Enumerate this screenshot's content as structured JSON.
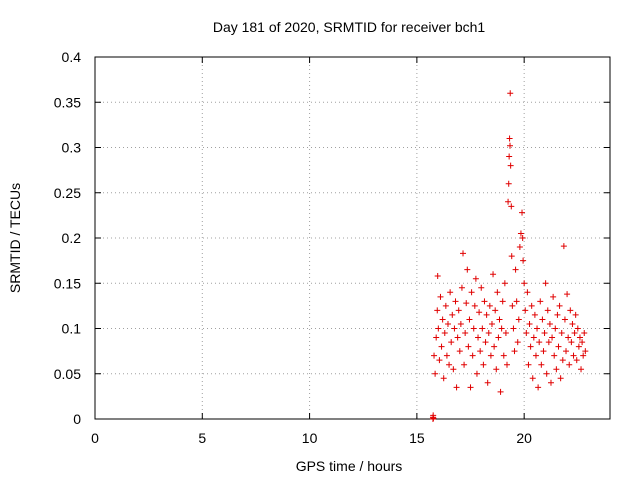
{
  "chart_data": {
    "type": "scatter",
    "title": "Day 181 of 2020, SRMTID for receiver bch1",
    "xlabel": "GPS time / hours",
    "ylabel": "SRMTID / TECUs",
    "xlim": [
      0,
      24
    ],
    "ylim": [
      0,
      0.4
    ],
    "xticks": [
      0,
      5,
      10,
      15,
      20
    ],
    "xtick_labels": [
      "0",
      "5",
      "10",
      "15",
      "20"
    ],
    "yticks": [
      0,
      0.05,
      0.1,
      0.15,
      0.2,
      0.25,
      0.3,
      0.35,
      0.4
    ],
    "ytick_labels": [
      "0",
      "0.05",
      "0.1",
      "0.15",
      "0.2",
      "0.25",
      "0.3",
      "0.35",
      "0.4"
    ],
    "grid": true,
    "marker": "+",
    "marker_color": "#e00000",
    "series": [
      {
        "name": "bch1",
        "points": [
          [
            15.75,
            0.0
          ],
          [
            15.75,
            0.002
          ],
          [
            15.76,
            0.004
          ],
          [
            15.77,
            0.001
          ],
          [
            15.8,
            0.07
          ],
          [
            15.85,
            0.05
          ],
          [
            15.9,
            0.09
          ],
          [
            15.95,
            0.12
          ],
          [
            15.97,
            0.158
          ],
          [
            16.0,
            0.1
          ],
          [
            16.05,
            0.065
          ],
          [
            16.1,
            0.135
          ],
          [
            16.15,
            0.08
          ],
          [
            16.2,
            0.11
          ],
          [
            16.25,
            0.045
          ],
          [
            16.3,
            0.095
          ],
          [
            16.35,
            0.125
          ],
          [
            16.4,
            0.07
          ],
          [
            16.45,
            0.105
          ],
          [
            16.5,
            0.06
          ],
          [
            16.55,
            0.14
          ],
          [
            16.6,
            0.085
          ],
          [
            16.65,
            0.115
          ],
          [
            16.7,
            0.055
          ],
          [
            16.75,
            0.1
          ],
          [
            16.8,
            0.13
          ],
          [
            16.85,
            0.035
          ],
          [
            16.9,
            0.09
          ],
          [
            16.95,
            0.12
          ],
          [
            17.0,
            0.075
          ],
          [
            17.05,
            0.105
          ],
          [
            17.1,
            0.145
          ],
          [
            17.15,
            0.183
          ],
          [
            17.2,
            0.06
          ],
          [
            17.25,
            0.095
          ],
          [
            17.3,
            0.128
          ],
          [
            17.35,
            0.165
          ],
          [
            17.4,
            0.08
          ],
          [
            17.45,
            0.11
          ],
          [
            17.5,
            0.035
          ],
          [
            17.55,
            0.14
          ],
          [
            17.6,
            0.07
          ],
          [
            17.65,
            0.1
          ],
          [
            17.7,
            0.125
          ],
          [
            17.75,
            0.155
          ],
          [
            17.8,
            0.05
          ],
          [
            17.85,
            0.09
          ],
          [
            17.9,
            0.118
          ],
          [
            17.95,
            0.075
          ],
          [
            18.0,
            0.145
          ],
          [
            18.05,
            0.1
          ],
          [
            18.1,
            0.06
          ],
          [
            18.15,
            0.13
          ],
          [
            18.2,
            0.085
          ],
          [
            18.25,
            0.115
          ],
          [
            18.3,
            0.04
          ],
          [
            18.35,
            0.095
          ],
          [
            18.4,
            0.125
          ],
          [
            18.45,
            0.07
          ],
          [
            18.5,
            0.105
          ],
          [
            18.55,
            0.16
          ],
          [
            18.6,
            0.08
          ],
          [
            18.65,
            0.12
          ],
          [
            18.7,
            0.055
          ],
          [
            18.75,
            0.14
          ],
          [
            18.8,
            0.09
          ],
          [
            18.85,
            0.11
          ],
          [
            18.9,
            0.03
          ],
          [
            18.95,
            0.1
          ],
          [
            19.0,
            0.13
          ],
          [
            19.05,
            0.07
          ],
          [
            19.1,
            0.15
          ],
          [
            19.15,
            0.095
          ],
          [
            19.2,
            0.06
          ],
          [
            19.25,
            0.24
          ],
          [
            19.28,
            0.26
          ],
          [
            19.3,
            0.29
          ],
          [
            19.32,
            0.31
          ],
          [
            19.34,
            0.302
          ],
          [
            19.35,
            0.36
          ],
          [
            19.37,
            0.28
          ],
          [
            19.4,
            0.235
          ],
          [
            19.42,
            0.18
          ],
          [
            19.45,
            0.125
          ],
          [
            19.5,
            0.1
          ],
          [
            19.55,
            0.075
          ],
          [
            19.6,
            0.165
          ],
          [
            19.65,
            0.13
          ],
          [
            19.7,
            0.085
          ],
          [
            19.75,
            0.11
          ],
          [
            19.8,
            0.19
          ],
          [
            19.85,
            0.205
          ],
          [
            19.9,
            0.228
          ],
          [
            19.93,
            0.2
          ],
          [
            19.95,
            0.175
          ],
          [
            20.0,
            0.15
          ],
          [
            20.05,
            0.12
          ],
          [
            20.1,
            0.095
          ],
          [
            20.15,
            0.14
          ],
          [
            20.2,
            0.06
          ],
          [
            20.25,
            0.105
          ],
          [
            20.3,
            0.08
          ],
          [
            20.35,
            0.125
          ],
          [
            20.4,
            0.045
          ],
          [
            20.45,
            0.09
          ],
          [
            20.5,
            0.115
          ],
          [
            20.55,
            0.07
          ],
          [
            20.6,
            0.1
          ],
          [
            20.65,
            0.035
          ],
          [
            20.7,
            0.085
          ],
          [
            20.75,
            0.13
          ],
          [
            20.8,
            0.06
          ],
          [
            20.85,
            0.11
          ],
          [
            20.9,
            0.075
          ],
          [
            20.95,
            0.095
          ],
          [
            21.0,
            0.15
          ],
          [
            21.05,
            0.05
          ],
          [
            21.1,
            0.12
          ],
          [
            21.15,
            0.085
          ],
          [
            21.2,
            0.105
          ],
          [
            21.25,
            0.04
          ],
          [
            21.3,
            0.09
          ],
          [
            21.35,
            0.135
          ],
          [
            21.4,
            0.07
          ],
          [
            21.45,
            0.1
          ],
          [
            21.5,
            0.055
          ],
          [
            21.55,
            0.115
          ],
          [
            21.6,
            0.08
          ],
          [
            21.65,
            0.125
          ],
          [
            21.7,
            0.045
          ],
          [
            21.75,
            0.095
          ],
          [
            21.8,
            0.065
          ],
          [
            21.85,
            0.191
          ],
          [
            21.9,
            0.11
          ],
          [
            21.95,
            0.075
          ],
          [
            22.0,
            0.138
          ],
          [
            22.05,
            0.09
          ],
          [
            22.1,
            0.06
          ],
          [
            22.15,
            0.12
          ],
          [
            22.2,
            0.085
          ],
          [
            22.25,
            0.105
          ],
          [
            22.3,
            0.07
          ],
          [
            22.35,
            0.095
          ],
          [
            22.4,
            0.115
          ],
          [
            22.45,
            0.065
          ],
          [
            22.5,
            0.1
          ],
          [
            22.55,
            0.08
          ],
          [
            22.6,
            0.09
          ],
          [
            22.65,
            0.055
          ],
          [
            22.7,
            0.085
          ],
          [
            22.75,
            0.07
          ],
          [
            22.8,
            0.095
          ],
          [
            22.85,
            0.075
          ]
        ]
      }
    ]
  }
}
